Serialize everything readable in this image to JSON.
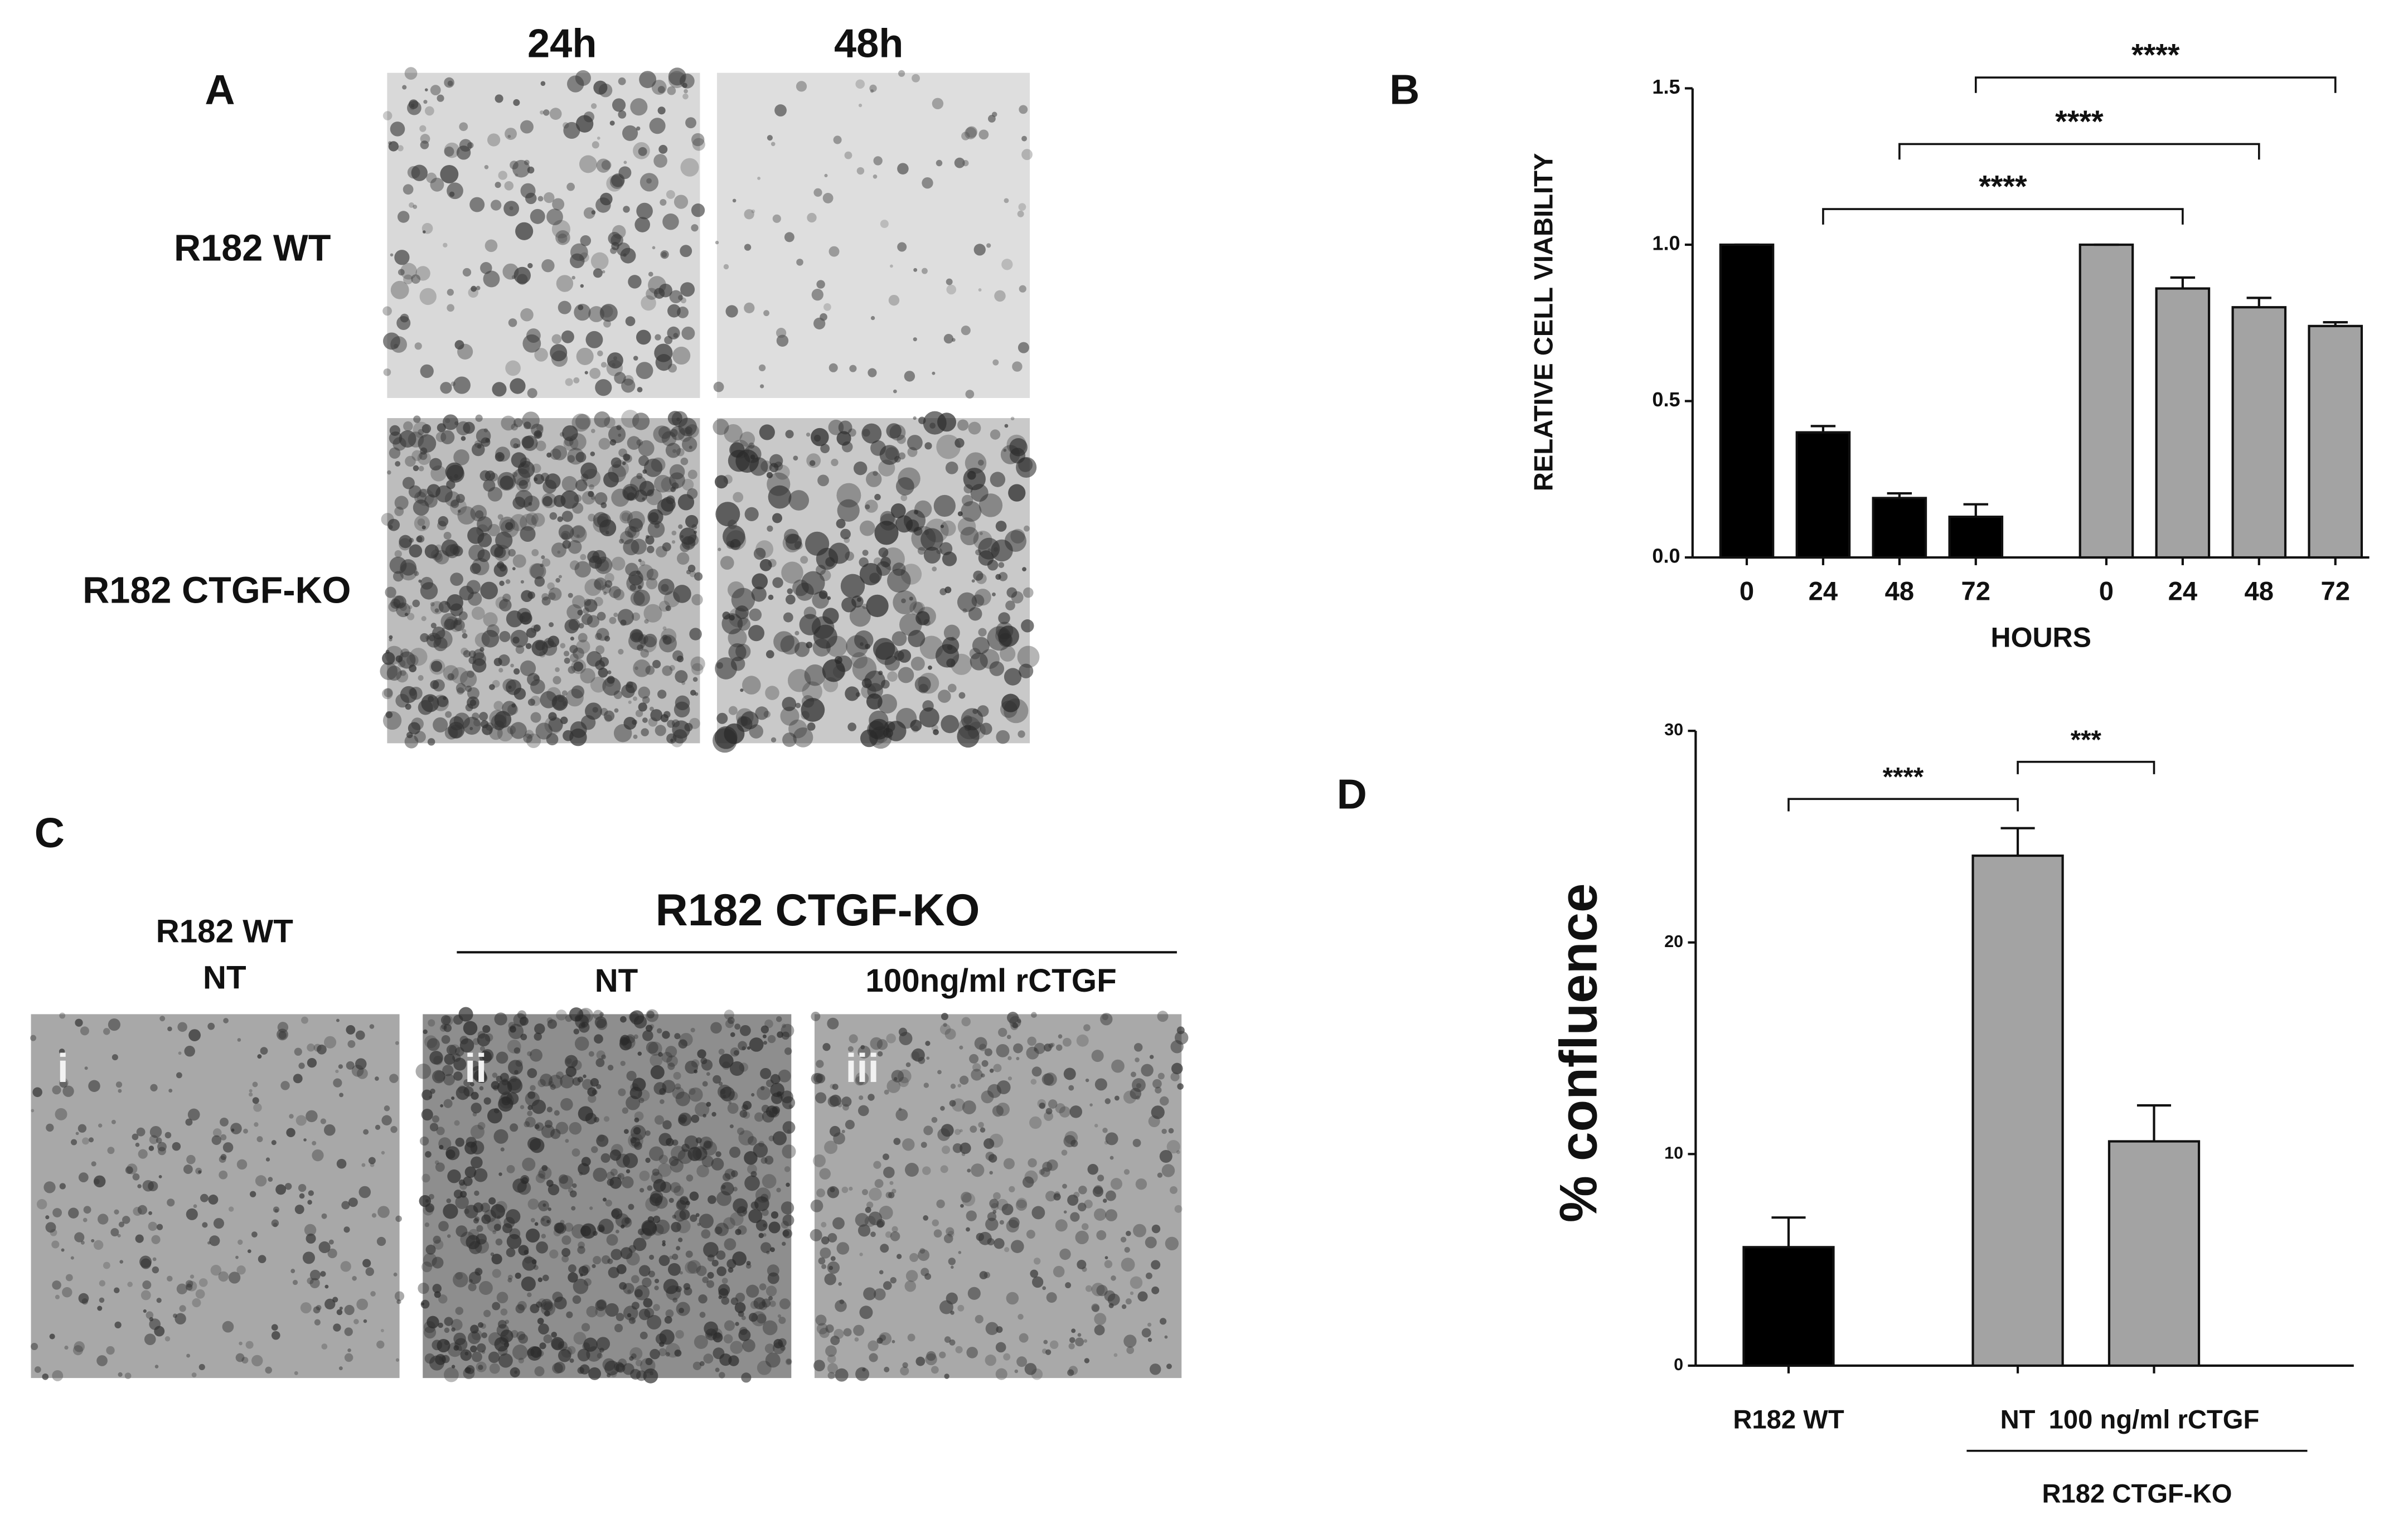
{
  "panels": {
    "A": {
      "label": "A",
      "columns": [
        "24h",
        "48h"
      ],
      "rows": [
        "R182 WT",
        "R182 CTGF-KO"
      ]
    },
    "C": {
      "label": "C",
      "control_lines": [
        "R182 WT",
        "NT"
      ],
      "group": "R182 CTGF-KO",
      "columns": [
        "NT",
        "100ng/ml rCTGF"
      ],
      "image_labels": [
        "i",
        "ii",
        "iii"
      ]
    }
  },
  "chart_data": [
    {
      "type": "bar",
      "panel": "B",
      "ylabel": "RELATIVE CELL VIABILITY",
      "xlabel": "HOURS",
      "categories": [
        "0",
        "24",
        "48",
        "72",
        "0",
        "24",
        "48",
        "72"
      ],
      "values": [
        1.0,
        0.4,
        0.19,
        0.13,
        1.0,
        0.86,
        0.8,
        0.74
      ],
      "errors": [
        0,
        0.02,
        0.015,
        0.04,
        0,
        0.035,
        0.03,
        0.012
      ],
      "colors": [
        "#000000",
        "#000000",
        "#000000",
        "#000000",
        "#a3a3a3",
        "#a3a3a3",
        "#a3a3a3",
        "#a3a3a3"
      ],
      "ylim": [
        0,
        1.5
      ],
      "yticks": [
        {
          "value": 0,
          "label": "0.0"
        },
        0.5,
        {
          "value": 1,
          "label": "1.0"
        },
        1.5
      ],
      "brackets": [
        {
          "from": 1,
          "to": 5,
          "label": "****"
        },
        {
          "from": 2,
          "to": 6,
          "label": "****"
        },
        {
          "from": 3,
          "to": 7,
          "label": "****"
        }
      ]
    },
    {
      "type": "bar",
      "panel": "D",
      "ylabel": "% confluence",
      "categories": [
        "R182 WT",
        "NT",
        "100 ng/ml rCTGF"
      ],
      "values": [
        5.6,
        24.1,
        10.6
      ],
      "errors": [
        1.4,
        1.3,
        1.7
      ],
      "colors": [
        "#000000",
        "#a3a3a3",
        "#a3a3a3"
      ],
      "group_label": "R182 CTGF-KO",
      "ylim": [
        0,
        30
      ],
      "yticks": [
        0,
        10,
        20,
        30
      ],
      "brackets": [
        {
          "from": 0,
          "to": 1,
          "label": "****"
        },
        {
          "from": 1,
          "to": 2,
          "label": "***"
        }
      ]
    }
  ]
}
